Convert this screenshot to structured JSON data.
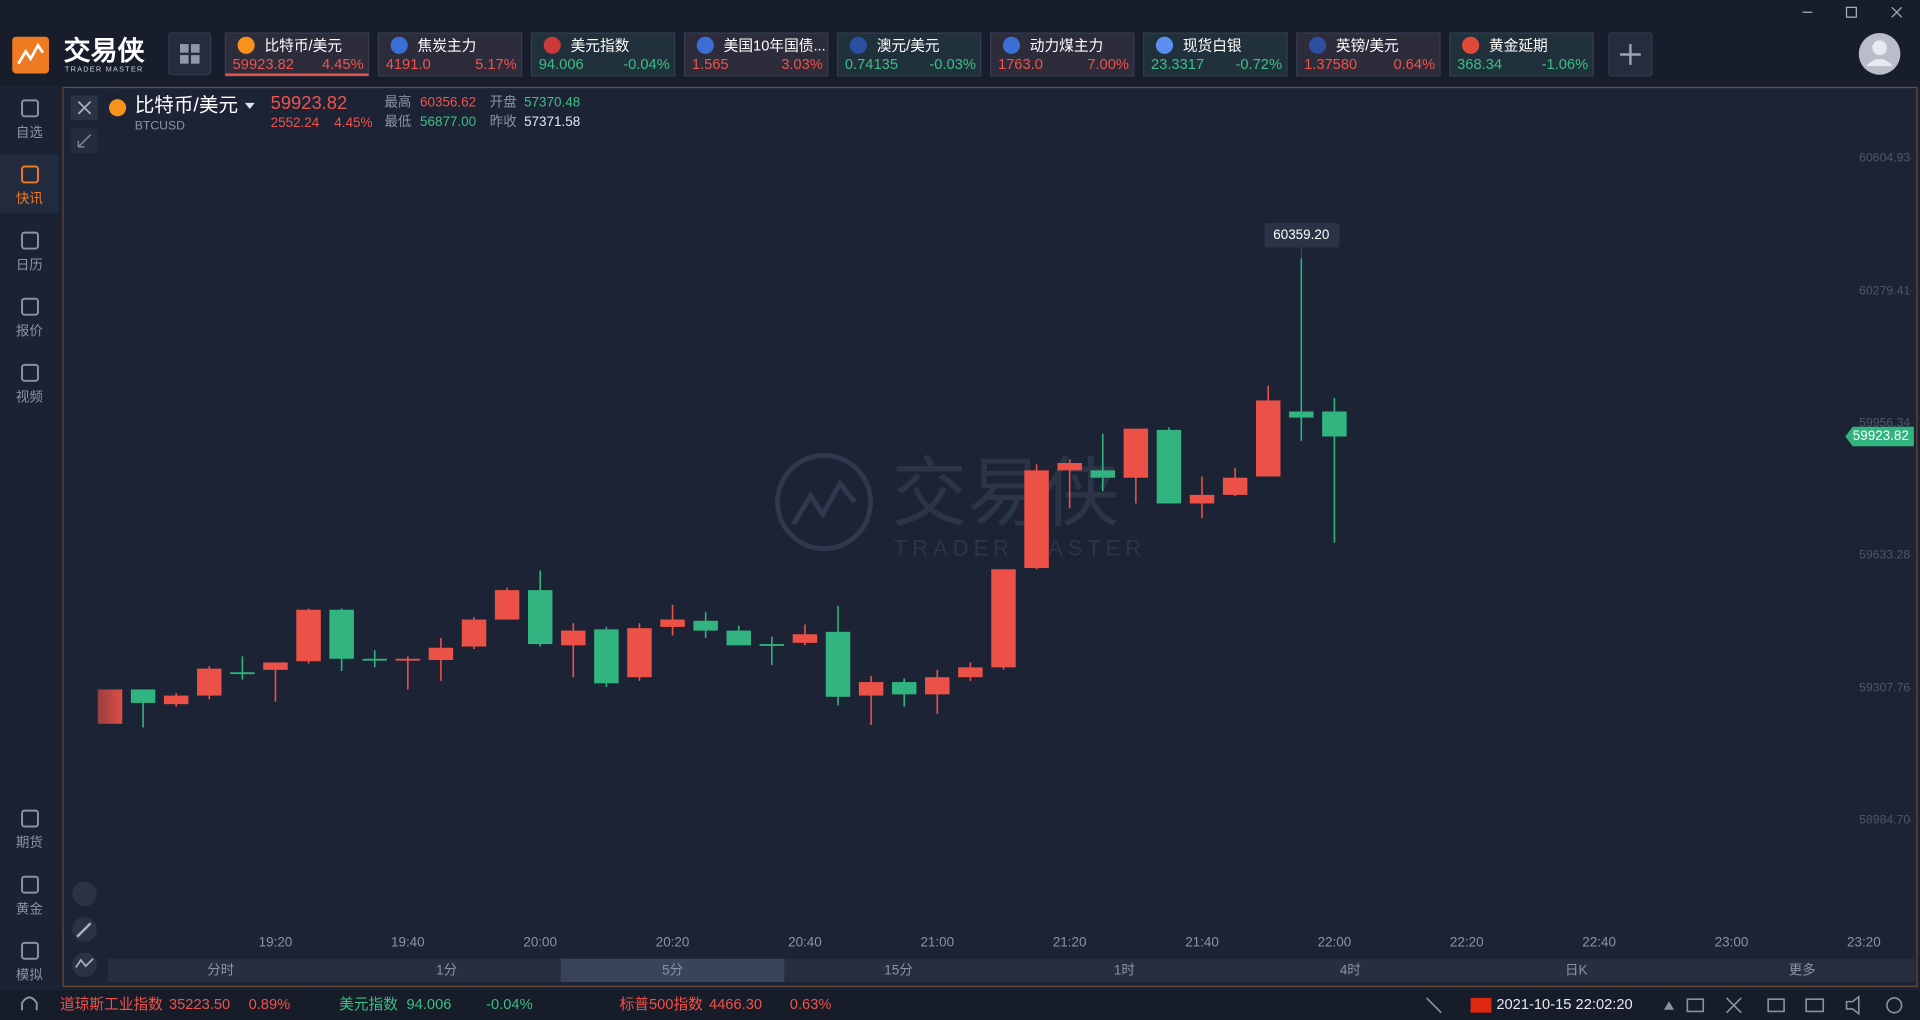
{
  "header": {
    "logo": "交易侠",
    "logo_sub": "TRADER MASTER"
  },
  "tickers": [
    {
      "name": "比特币/美元",
      "price": "59923.82",
      "change": "4.45%",
      "color": "#f0524c"
    },
    {
      "name": "焦炭主力",
      "price": "4191.0",
      "change": "5.17%",
      "color": "#f0524c"
    },
    {
      "name": "美元指数",
      "price": "94.006",
      "change": "-0.04%",
      "color": "#3bbf86"
    },
    {
      "name": "美国10年国债...",
      "price": "1.565",
      "change": "3.03%",
      "color": "#f0524c"
    },
    {
      "name": "澳元/美元",
      "price": "0.74135",
      "change": "-0.03%",
      "color": "#3bbf86"
    },
    {
      "name": "动力煤主力",
      "price": "1763.0",
      "change": "7.00%",
      "color": "#f0524c"
    },
    {
      "name": "现货白银",
      "price": "23.3317",
      "change": "-0.72%",
      "color": "#3bbf86"
    },
    {
      "name": "英镑/美元",
      "price": "1.37580",
      "change": "0.64%",
      "color": "#f0524c"
    },
    {
      "name": "黄金延期",
      "price": "368.34",
      "change": "-1.06%",
      "color": "#3bbf86"
    }
  ],
  "sidebar": {
    "items": [
      "自选",
      "快讯",
      "日历",
      "报价",
      "视频",
      "期货",
      "黄金",
      "模拟"
    ],
    "active": 1
  },
  "instrument": {
    "name": "比特币/美元",
    "symbol": "BTCUSD",
    "price": "59923.82",
    "change": "2552.24",
    "change_pct": "4.45%",
    "high_label": "最高",
    "high": "60356.62",
    "open_label": "开盘",
    "open": "57370.48",
    "low_label": "最低",
    "low": "56877.00",
    "prev_close_label": "昨收",
    "prev_close": "57371.58"
  },
  "periods": {
    "items": [
      "分时",
      "1分",
      "5分",
      "15分",
      "1时",
      "4时",
      "日K",
      "更多"
    ],
    "active": 2
  },
  "status_bar": {
    "quotes": [
      {
        "name": "道琼斯工业指数",
        "price": "35223.50",
        "change": "0.89%",
        "color": "#f0524c"
      },
      {
        "name": "美元指数",
        "price": "94.006",
        "change": "-0.04%",
        "color": "#3bbf86"
      },
      {
        "name": "标普500指数",
        "price": "4466.30",
        "change": "0.63%",
        "color": "#f0524c"
      }
    ],
    "datetime": "2021-10-15 22:02:20"
  },
  "chart_data": {
    "type": "candlestick",
    "x": [
      "18:55",
      "19:00",
      "19:05",
      "19:10",
      "19:15",
      "19:20",
      "19:25",
      "19:30",
      "19:35",
      "19:40",
      "19:45",
      "19:50",
      "19:55",
      "20:00",
      "20:05",
      "20:10",
      "20:15",
      "20:20",
      "20:25",
      "20:30",
      "20:35",
      "20:40",
      "20:45",
      "20:50",
      "20:55",
      "21:00",
      "21:05",
      "21:10",
      "21:15",
      "21:20",
      "21:25",
      "21:30",
      "21:35",
      "21:40",
      "21:45",
      "21:50",
      "21:55",
      "22:00"
    ],
    "open": [
      59221,
      59305,
      59269,
      59290,
      59347,
      59353,
      59374,
      59500,
      59380,
      59377,
      59377,
      59410,
      59476,
      59548,
      59413,
      59452,
      59335,
      59458,
      59473,
      59449,
      59416,
      59419,
      59446,
      59290,
      59323,
      59293,
      59335,
      59359,
      59602,
      59841,
      59841,
      59823,
      59940,
      59760,
      59781,
      59826,
      59985,
      59985
    ],
    "high": [
      59305,
      59305,
      59296,
      59362,
      59386,
      59371,
      59503,
      59503,
      59401,
      59386,
      59431,
      59482,
      59554,
      59596,
      59467,
      59458,
      59467,
      59512,
      59494,
      59461,
      59434,
      59464,
      59509,
      59338,
      59332,
      59353,
      59371,
      59599,
      59856,
      59868,
      59931,
      59943,
      59946,
      59826,
      59847,
      60048,
      60359.2,
      60018
    ],
    "low": [
      59221,
      59212,
      59263,
      59281,
      59329,
      59275,
      59368,
      59350,
      59359,
      59305,
      59326,
      59404,
      59476,
      59410,
      59335,
      59311,
      59326,
      59437,
      59431,
      59413,
      59365,
      59413,
      59266,
      59218,
      59263,
      59245,
      59326,
      59353,
      59599,
      59748,
      59790,
      59760,
      59760,
      59724,
      59778,
      59826,
      59913,
      59664
    ],
    "close": [
      59305,
      59272,
      59290,
      59356,
      59344,
      59371,
      59500,
      59380,
      59378,
      59380,
      59407,
      59476,
      59548,
      59416,
      59449,
      59320,
      59455,
      59476,
      59449,
      59413,
      59413,
      59440,
      59287,
      59323,
      59293,
      59335,
      59359,
      59599,
      59841,
      59859,
      59823,
      59943,
      59760,
      59781,
      59823,
      60012,
      59970,
      59923.82
    ],
    "xlim": [
      "18:48",
      "23:27"
    ],
    "xticks": [
      "19:20",
      "19:40",
      "20:00",
      "20:20",
      "20:40",
      "21:00",
      "21:20",
      "21:40",
      "22:00",
      "22:20",
      "22:40",
      "23:00",
      "23:20"
    ],
    "ylim": [
      58715,
      60776
    ],
    "yticks": [
      60604.93,
      60279.41,
      59956.34,
      59633.28,
      59307.76,
      {
        "value": 58984.7,
        "label": "58984.70"
      }
    ],
    "up_color": "#ec5147",
    "down_color": "#31b47f",
    "last_price": 59923.82,
    "max_marker": {
      "value": 60359.2,
      "label": "60359.20"
    }
  }
}
